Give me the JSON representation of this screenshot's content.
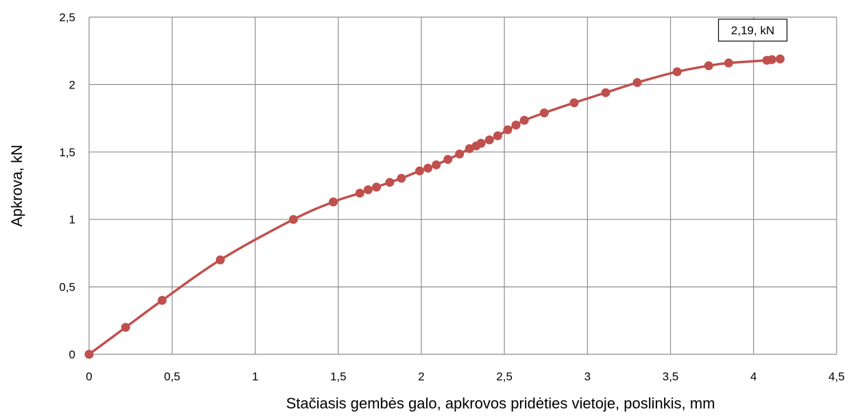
{
  "chart_data": {
    "type": "line",
    "title": "",
    "xlabel": "Stačiasis gembės galo, apkrovos pridėties vietoje, poslinkis, mm",
    "ylabel": "Apkrova, kN",
    "xlim": [
      0,
      4.5
    ],
    "ylim": [
      0,
      2.5
    ],
    "grid": true,
    "legend": "none",
    "x_ticks": [
      "0",
      "0,5",
      "1",
      "1,5",
      "2",
      "2,5",
      "3",
      "3,5",
      "4",
      "4,5"
    ],
    "y_ticks": [
      "0",
      "0,5",
      "1",
      "1,5",
      "2",
      "2,5"
    ],
    "annotation": "2,19, kN",
    "series": [
      {
        "color": "#c0504d",
        "marker": "circle",
        "points": [
          [
            0,
            0
          ],
          [
            0.22,
            0.2
          ],
          [
            0.44,
            0.4
          ],
          [
            0.79,
            0.7
          ],
          [
            1.23,
            1.0
          ],
          [
            1.47,
            1.13
          ],
          [
            1.63,
            1.195
          ],
          [
            1.68,
            1.22
          ],
          [
            1.73,
            1.24
          ],
          [
            1.81,
            1.275
          ],
          [
            1.88,
            1.305
          ],
          [
            1.99,
            1.36
          ],
          [
            2.04,
            1.38
          ],
          [
            2.09,
            1.405
          ],
          [
            2.16,
            1.445
          ],
          [
            2.23,
            1.485
          ],
          [
            2.29,
            1.525
          ],
          [
            2.33,
            1.545
          ],
          [
            2.36,
            1.565
          ],
          [
            2.41,
            1.59
          ],
          [
            2.46,
            1.62
          ],
          [
            2.52,
            1.665
          ],
          [
            2.57,
            1.7
          ],
          [
            2.62,
            1.735
          ],
          [
            2.74,
            1.79
          ],
          [
            2.92,
            1.865
          ],
          [
            3.11,
            1.94
          ],
          [
            3.3,
            2.015
          ],
          [
            3.54,
            2.095
          ],
          [
            3.73,
            2.14
          ],
          [
            3.85,
            2.16
          ],
          [
            4.08,
            2.18
          ],
          [
            4.11,
            2.185
          ],
          [
            4.16,
            2.19
          ]
        ]
      }
    ]
  }
}
